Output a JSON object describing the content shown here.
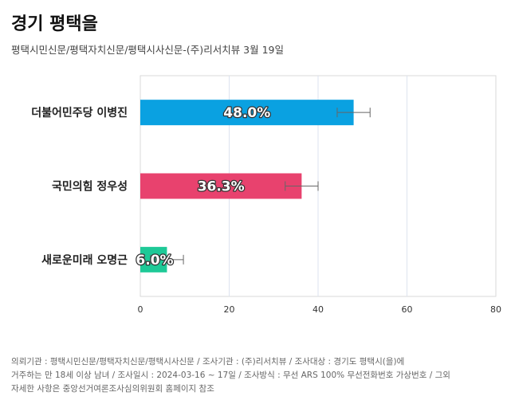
{
  "header": {
    "title": "경기 평택을",
    "subtitle": "평택시민신문/평택자치신문/평택시사신문-(주)리서치뷰 3월 19일"
  },
  "chart_data": {
    "type": "bar",
    "orientation": "horizontal",
    "categories": [
      "더불어민주당 이병진",
      "국민의힘 정우성",
      "새로운미래 오명근"
    ],
    "values": [
      48.0,
      36.3,
      6.0
    ],
    "value_labels": [
      "48.0%",
      "36.3%",
      "6.0%"
    ],
    "error_bars": [
      [
        44.3,
        51.7
      ],
      [
        32.6,
        40.0
      ],
      [
        2.3,
        9.7
      ]
    ],
    "colors": [
      "#0aa1e1",
      "#e8426e",
      "#1ec997"
    ],
    "xlim": [
      0,
      80
    ],
    "xticks": [
      0,
      20,
      40,
      60,
      80
    ],
    "grid": true,
    "legend": "none"
  },
  "footnote": {
    "line1": "의뢰기관 : 평택시민신문/평택자치신문/평택시사신문 / 조사기관 : (주)리서치뷰 / 조사대상 : 경기도 평택시(을)에",
    "line2": "거주하는 만 18세 이상 남녀 / 조사일시 : 2024-03-16 ~ 17일 / 조사방식 : 무선 ARS 100% 무선전화번호 가상번호 / 그외",
    "line3": "자세한 사항은 중앙선거여론조사심의위원회 홈페이지 참조"
  }
}
